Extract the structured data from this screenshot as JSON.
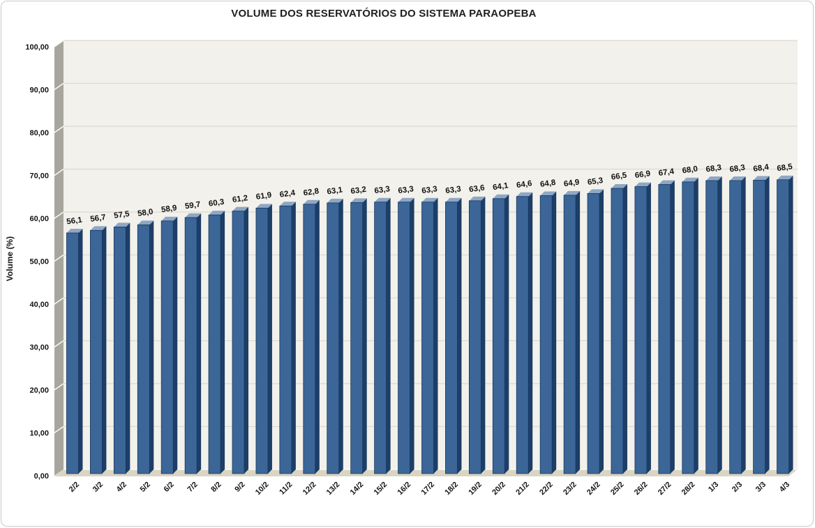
{
  "chart_data": {
    "type": "bar",
    "title": "VOLUME DOS RESERVATÓRIOS DO SISTEMA PARAOPEBA",
    "ylabel": "Volume (%)",
    "xlabel": "",
    "ylim": [
      0,
      100
    ],
    "ytick_step": 10,
    "ytick_labels": [
      "0,00",
      "10,00",
      "20,00",
      "30,00",
      "40,00",
      "50,00",
      "60,00",
      "70,00",
      "80,00",
      "90,00",
      "100,00"
    ],
    "grid": true,
    "legend": false,
    "categories": [
      "2/2",
      "3/2",
      "4/2",
      "5/2",
      "6/2",
      "7/2",
      "8/2",
      "9/2",
      "10/2",
      "11/2",
      "12/2",
      "13/2",
      "14/2",
      "15/2",
      "16/2",
      "17/2",
      "18/2",
      "19/2",
      "20/2",
      "21/2",
      "22/2",
      "23/2",
      "24/2",
      "25/2",
      "26/2",
      "27/2",
      "28/2",
      "1/3",
      "2/3",
      "3/3",
      "4/3"
    ],
    "values": [
      56.1,
      56.7,
      57.5,
      58.0,
      58.9,
      59.7,
      60.3,
      61.2,
      61.9,
      62.4,
      62.8,
      63.1,
      63.2,
      63.3,
      63.3,
      63.3,
      63.3,
      63.6,
      64.1,
      64.6,
      64.8,
      64.9,
      65.3,
      66.5,
      66.9,
      67.4,
      68.0,
      68.3,
      68.3,
      68.4,
      68.5
    ],
    "value_labels": [
      "56,1",
      "56,7",
      "57,5",
      "58,0",
      "58,9",
      "59,7",
      "60,3",
      "61,2",
      "61,9",
      "62,4",
      "62,8",
      "63,1",
      "63,2",
      "63,3",
      "63,3",
      "63,3",
      "63,3",
      "63,6",
      "64,1",
      "64,6",
      "64,8",
      "64,9",
      "65,3",
      "66,5",
      "66,9",
      "67,4",
      "68,0",
      "68,3",
      "68,3",
      "68,4",
      "68,5"
    ],
    "style": {
      "bar_front": "#3b6697",
      "bar_side": "#1d3e66",
      "bar_top": "#8fa7c3",
      "bar_stroke": "#16375f",
      "wall_bg": "#f2f1ec",
      "wall_side": "#a7a69e",
      "floor": "#d9d5c2",
      "gridline": "#dddad0",
      "wall_edge_highlight": "#fbfaf6",
      "label_color": "#141414",
      "title_color": "#1f1f1f"
    }
  }
}
